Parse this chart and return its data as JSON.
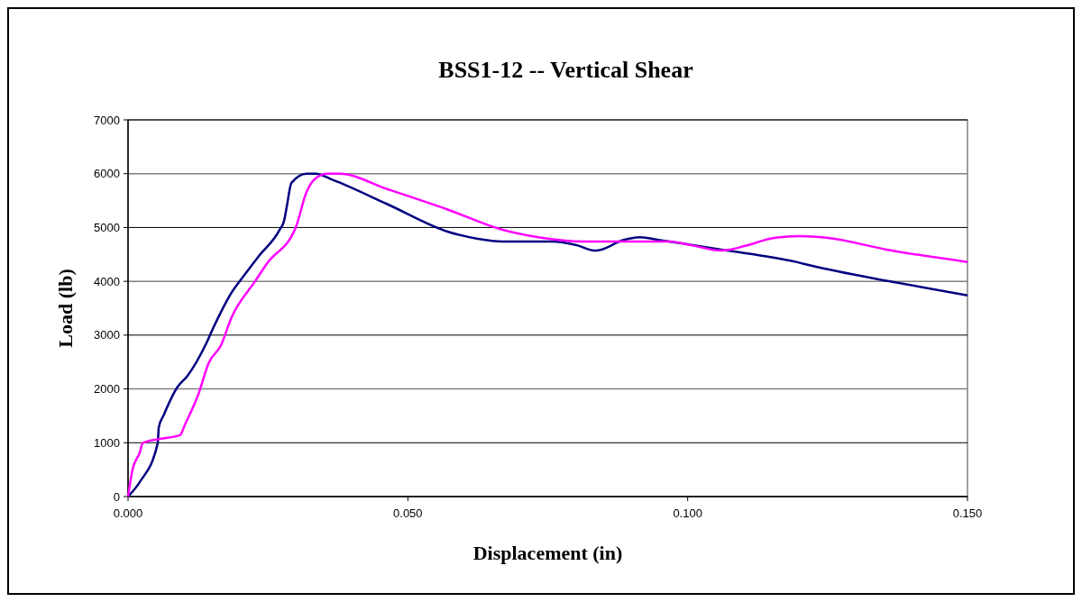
{
  "chart_data": {
    "type": "line",
    "title": "BSS1-12  --  Vertical Shear",
    "xlabel": "Displacement  (in)",
    "ylabel": "Load  (lb)",
    "xlim": [
      0,
      0.15
    ],
    "xticks": [
      {
        "value": 0,
        "label": "0.000"
      },
      {
        "value": 0.05,
        "label": "0.050"
      },
      {
        "value": 0.1,
        "label": "0.100"
      },
      {
        "value": 0.15,
        "label": "0.150"
      }
    ],
    "ylim": [
      0,
      7000
    ],
    "yticks": [
      0,
      1000,
      2000,
      3000,
      4000,
      5000,
      6000,
      7000
    ],
    "grid": "y",
    "marker": "none",
    "line_style": "solid",
    "series": [
      {
        "color": "#000080",
        "x": [
          0,
          0.0021,
          0.0053,
          0.0055,
          0.0064,
          0.0088,
          0.0106,
          0.0139,
          0.0153,
          0.0185,
          0.0206,
          0.0233,
          0.0271,
          0.0279,
          0.0284,
          0.0292,
          0.0319,
          0.0335,
          0.0367,
          0.0464,
          0.0572,
          0.0625,
          0.0668,
          0.0759,
          0.0802,
          0.0835,
          0.0846,
          0.0883,
          0.0915,
          0.0948,
          0.106,
          0.1194,
          0.1221,
          0.1366,
          0.15
        ],
        "values": [
          0,
          270,
          990,
          1290,
          1520,
          2030,
          2240,
          2830,
          3150,
          3790,
          4090,
          4460,
          4960,
          5130,
          5410,
          5830,
          6000,
          6000,
          5880,
          5430,
          4920,
          4790,
          4740,
          4740,
          4670,
          4570,
          4590,
          4760,
          4820,
          4770,
          4590,
          4360,
          4290,
          3990,
          3740
        ]
      },
      {
        "color": "#ff00ff",
        "x": [
          0,
          0.0008,
          0.0021,
          0.0026,
          0.0056,
          0.0093,
          0.0101,
          0.0126,
          0.0144,
          0.0166,
          0.0185,
          0.0227,
          0.0249,
          0.03,
          0.0319,
          0.0335,
          0.0356,
          0.0378,
          0.0464,
          0.0572,
          0.0668,
          0.0733,
          0.0813,
          0.0948,
          0.0968,
          0.1007,
          0.106,
          0.1076,
          0.1103,
          0.1157,
          0.12,
          0.1248,
          0.1355,
          0.15
        ],
        "values": [
          0,
          500,
          820,
          990,
          1070,
          1140,
          1320,
          1910,
          2480,
          2810,
          3330,
          4000,
          4340,
          5010,
          5660,
          5910,
          6000,
          6000,
          5710,
          5330,
          4960,
          4820,
          4740,
          4740,
          4740,
          4670,
          4570,
          4590,
          4660,
          4810,
          4840,
          4810,
          4590,
          4360
        ]
      }
    ]
  }
}
